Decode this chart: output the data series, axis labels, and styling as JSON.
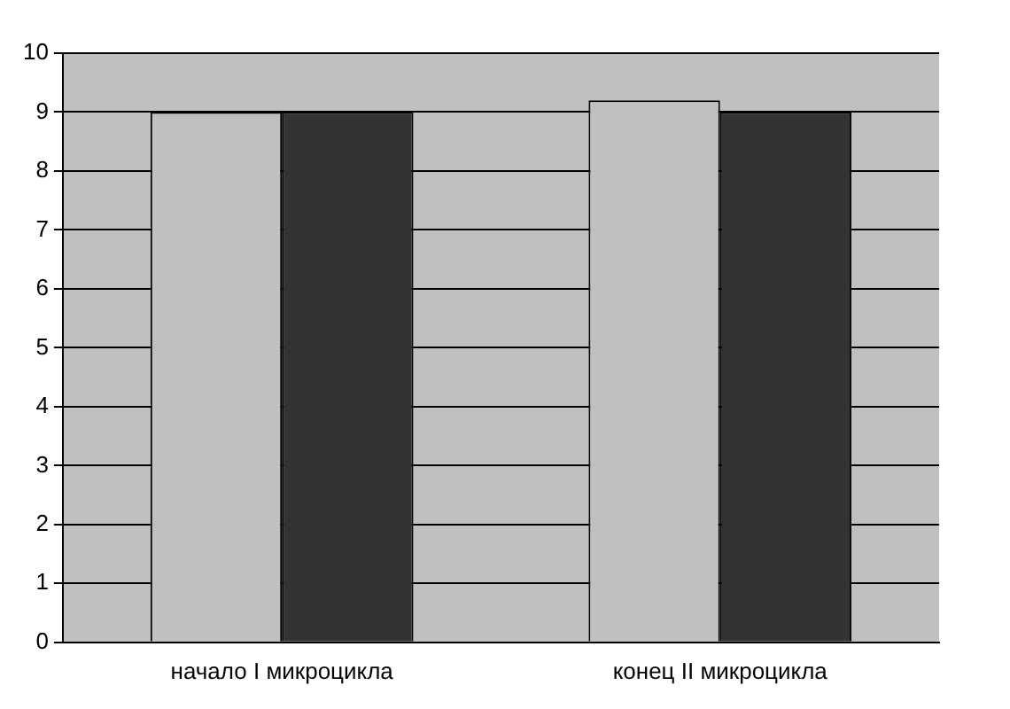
{
  "chart_data": {
    "type": "bar",
    "categories": [
      "начало I микроцикла",
      "конец II микроцикла"
    ],
    "series": [
      {
        "color": "#c0c0c0",
        "values": [
          9,
          9.2
        ]
      },
      {
        "color": "#333333",
        "values": [
          9,
          9
        ]
      }
    ],
    "ylim": [
      0,
      10
    ],
    "yticks": [
      0,
      1,
      2,
      3,
      4,
      5,
      6,
      7,
      8,
      9,
      10
    ],
    "grid": "y",
    "legend": false
  }
}
